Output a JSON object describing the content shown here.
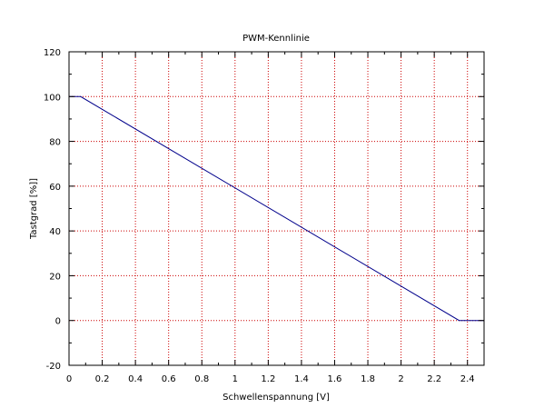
{
  "chart_data": {
    "type": "line",
    "title": "PWM-Kennlinie",
    "xlabel": "Schwellenspannung [V]",
    "ylabel": "Tastgrad [%]]",
    "xlim": [
      0,
      2.5
    ],
    "ylim": [
      -20,
      120
    ],
    "xticks": [
      0,
      0.2,
      0.4,
      0.6,
      0.8,
      1,
      1.2,
      1.4,
      1.6,
      1.8,
      2,
      2.2,
      2.4
    ],
    "xtick_labels": [
      "0",
      "0.2",
      "0.4",
      "0.6",
      "0.8",
      "1",
      "1.2",
      "1.4",
      "1.6",
      "1.8",
      "2",
      "2.2",
      "2.4"
    ],
    "yticks": [
      -20,
      0,
      20,
      40,
      60,
      80,
      100,
      120
    ],
    "ytick_labels": [
      "-20",
      "0",
      "20",
      "40",
      "60",
      "80",
      "100",
      "120"
    ],
    "grid": true,
    "grid_color": "#cc0000",
    "series": [
      {
        "color": "#00008b",
        "x": [
          0,
          0.07,
          2.35,
          2.5
        ],
        "y": [
          100,
          100,
          0,
          0
        ]
      }
    ]
  }
}
